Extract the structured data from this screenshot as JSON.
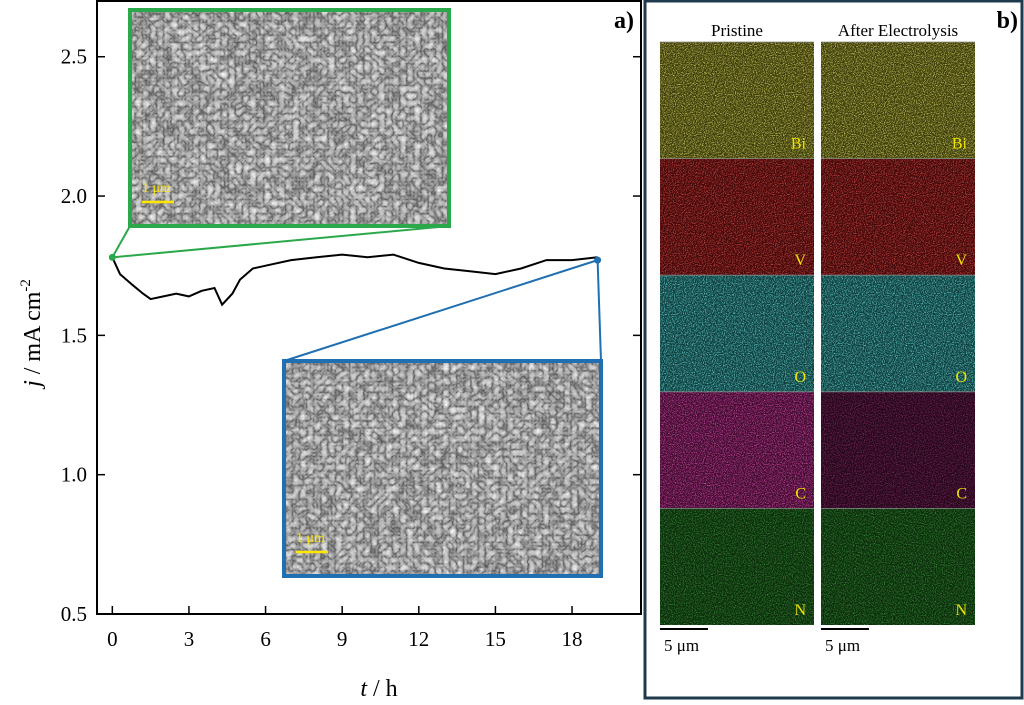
{
  "chart_data": {
    "type": "line",
    "panel_label": "a)",
    "xlabel": {
      "italic": "t",
      "text": " / h"
    },
    "ylabel": {
      "italic": "j",
      "text": " / mA cm",
      "superscript": "-2"
    },
    "x": [
      0,
      0.3,
      0.8,
      1.2,
      1.5,
      2,
      2.5,
      3,
      3.5,
      4,
      4.3,
      4.7,
      5,
      5.5,
      6,
      7,
      8,
      9,
      10,
      11,
      12,
      13,
      14,
      15,
      16,
      17,
      18,
      19
    ],
    "series": [
      {
        "color": "#000000",
        "values": [
          1.78,
          1.72,
          1.68,
          1.65,
          1.63,
          1.64,
          1.65,
          1.64,
          1.66,
          1.67,
          1.61,
          1.65,
          1.7,
          1.74,
          1.75,
          1.77,
          1.78,
          1.79,
          1.78,
          1.79,
          1.76,
          1.74,
          1.73,
          1.72,
          1.74,
          1.77,
          1.77,
          1.78
        ]
      }
    ],
    "xlim": [
      -0.6,
      20.7
    ],
    "xticks": [
      0,
      3,
      6,
      9,
      12,
      15,
      18
    ],
    "ylim": [
      0.5,
      2.7
    ],
    "yticks": [
      0.5,
      {
        "value": 1.0,
        "label": "1.0"
      },
      1.5,
      {
        "value": 2.0,
        "label": "2.0"
      },
      2.5
    ],
    "insets": [
      {
        "x": 0,
        "y": 1.78,
        "color": "#2aa84a",
        "scale_label": "1 μm"
      },
      {
        "x": 19,
        "y": 1.77,
        "color": "#1f6fb2",
        "scale_label": "1 μm"
      }
    ]
  },
  "eds_maps": {
    "panel_label": "b)",
    "columns": [
      "Pristine",
      "After Electrolysis"
    ],
    "elements": [
      "Bi",
      "V",
      "O",
      "C",
      "N"
    ],
    "scale_bar": "5 μm"
  }
}
